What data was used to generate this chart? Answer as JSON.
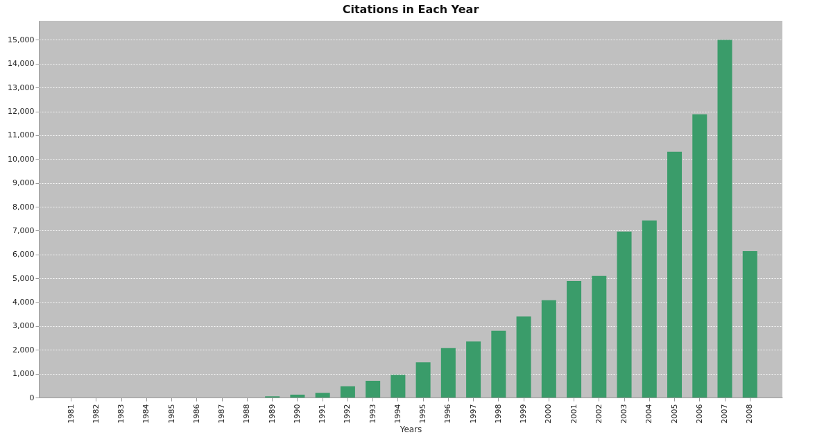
{
  "chart_data": {
    "type": "bar",
    "title": "Citations in Each Year",
    "xlabel": "Years",
    "categories": [
      "1981",
      "1982",
      "1983",
      "1984",
      "1985",
      "1986",
      "1987",
      "1988",
      "1989",
      "1990",
      "1991",
      "1992",
      "1993",
      "1994",
      "1995",
      "1996",
      "1997",
      "1998",
      "1999",
      "2000",
      "2001",
      "2002",
      "2003",
      "2004",
      "2005",
      "2006",
      "2007",
      "2008"
    ],
    "values": [
      0,
      0,
      0,
      0,
      0,
      0,
      0,
      0,
      50,
      120,
      200,
      470,
      700,
      950,
      1480,
      2070,
      2350,
      2800,
      3400,
      4080,
      4890,
      5100,
      6960,
      7430,
      10310,
      11880,
      15000,
      6140
    ],
    "color": "#3a9c6a",
    "ylim": [
      0,
      15800
    ],
    "yticks": [
      {
        "value": 0,
        "label": "0"
      },
      {
        "value": 1000,
        "label": "1,000"
      },
      {
        "value": 2000,
        "label": "2,000"
      },
      {
        "value": 3000,
        "label": "3,000"
      },
      {
        "value": 4000,
        "label": "4,000"
      },
      {
        "value": 5000,
        "label": "5,000"
      },
      {
        "value": 6000,
        "label": "6,000"
      },
      {
        "value": 7000,
        "label": "7,000"
      },
      {
        "value": 8000,
        "label": "8,000"
      },
      {
        "value": 9000,
        "label": "9,000"
      },
      {
        "value": 10000,
        "label": "10,000"
      },
      {
        "value": 11000,
        "label": "11,000"
      },
      {
        "value": 12000,
        "label": "12,000"
      },
      {
        "value": 13000,
        "label": "13,000"
      },
      {
        "value": 14000,
        "label": "14,000"
      },
      {
        "value": 15000,
        "label": "15,000"
      }
    ],
    "grid": true
  }
}
